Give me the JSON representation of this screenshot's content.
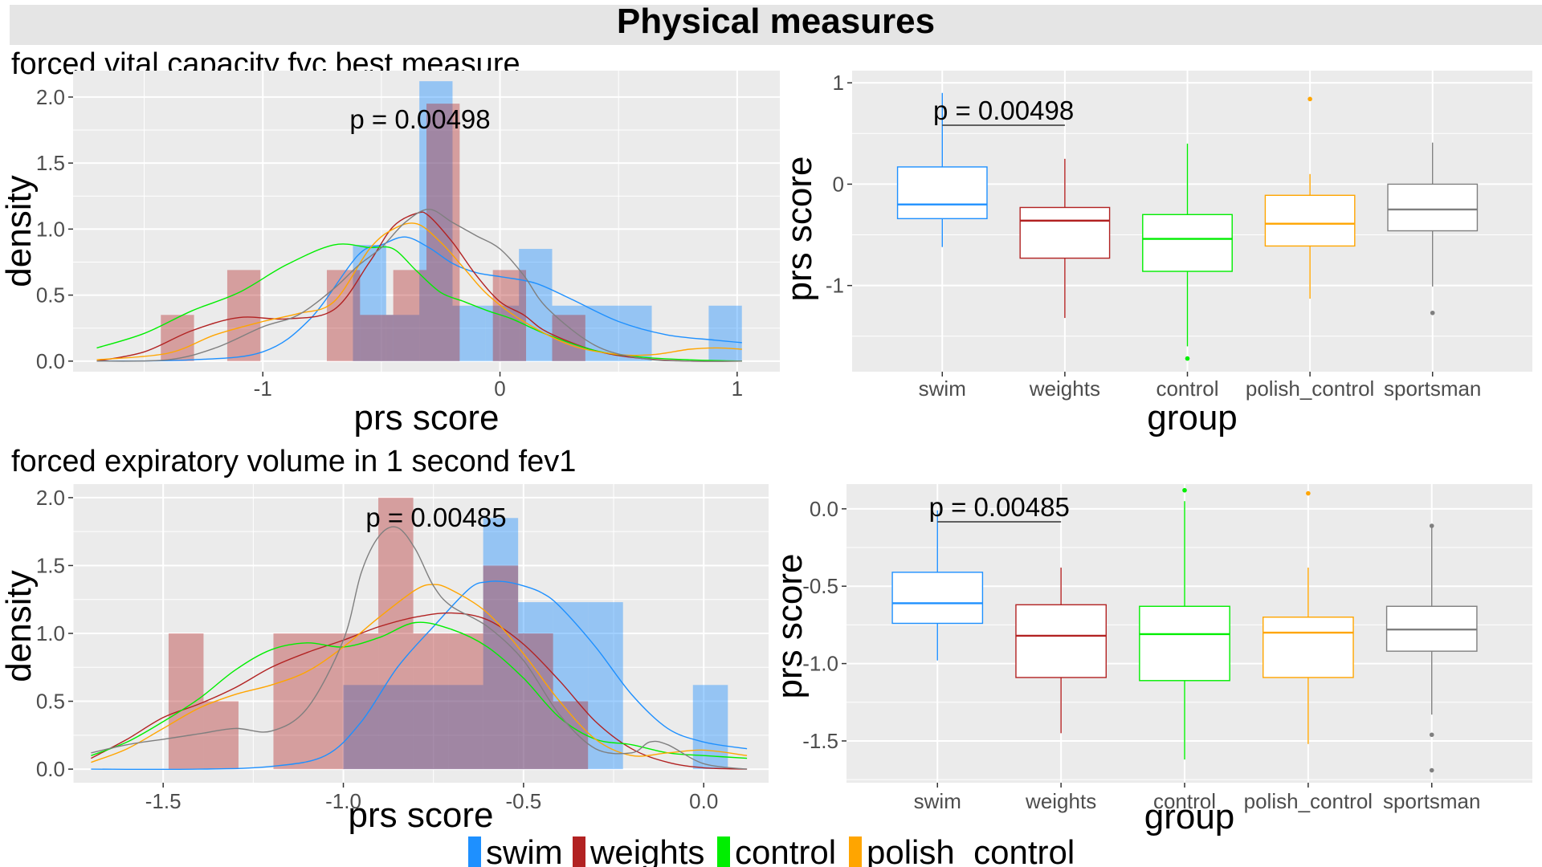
{
  "figure": {
    "title": "Physical measures",
    "legend": {
      "placement": "bottom",
      "entries": [
        {
          "label": "swim",
          "color": "#1e90ff"
        },
        {
          "label": "weights",
          "color": "#b22222"
        },
        {
          "label": "control",
          "color": "#00ee00"
        },
        {
          "label": "polish_control",
          "color": "#ffa500"
        }
      ]
    }
  },
  "colors": {
    "panel_bg": "#ebebeb",
    "grid": "#ffffff",
    "swim": "#1e90ff",
    "weights": "#b22222",
    "control": "#00ee00",
    "polish_control": "#ffa500",
    "sportsman": "#7f7f7f",
    "overlap": "#8b6a9a"
  },
  "chart_data": [
    {
      "type": "histogram",
      "title": "forced vital capacity fvc best measure",
      "xlabel": "prs score",
      "ylabel": "density",
      "annotation": "p = 0.00498",
      "xlim": [
        -1.8,
        1.18
      ],
      "ylim": [
        -0.08,
        2.2
      ],
      "xticks": [
        -1,
        0,
        1
      ],
      "xtick_labels": [
        "-1",
        "0",
        "1"
      ],
      "yticks": [
        0.0,
        0.5,
        1.0,
        1.5,
        2.0
      ],
      "ytick_labels": [
        "0.0",
        "0.5",
        "1.0",
        "1.5",
        "2.0"
      ],
      "grid": true,
      "histograms": [
        {
          "name": "swim",
          "color": "#1e90ff",
          "opacity": 0.42,
          "bins": [
            [
              -0.62,
              -0.48,
              0.88
            ],
            [
              -0.48,
              -0.34,
              0.35
            ],
            [
              -0.34,
              -0.2,
              2.12
            ],
            [
              -0.2,
              -0.06,
              0.42
            ],
            [
              -0.06,
              0.08,
              0.42
            ],
            [
              0.08,
              0.22,
              0.85
            ],
            [
              0.22,
              0.36,
              0.42
            ],
            [
              0.36,
              0.5,
              0.42
            ],
            [
              0.5,
              0.64,
              0.42
            ],
            [
              0.88,
              1.02,
              0.42
            ]
          ]
        },
        {
          "name": "weights",
          "color": "#b22222",
          "opacity": 0.38,
          "bins": [
            [
              -1.43,
              -1.29,
              0.35
            ],
            [
              -1.15,
              -1.01,
              0.69
            ],
            [
              -0.73,
              -0.59,
              0.69
            ],
            [
              -0.59,
              -0.45,
              0.35
            ],
            [
              -0.45,
              -0.31,
              0.69
            ],
            [
              -0.31,
              -0.17,
              1.95
            ],
            [
              -0.03,
              0.11,
              0.69
            ],
            [
              0.22,
              0.36,
              0.35
            ]
          ]
        }
      ],
      "densities": [
        {
          "name": "swim",
          "color": "#1e90ff",
          "x": [
            -1.7,
            -1.3,
            -1.0,
            -0.8,
            -0.6,
            -0.5,
            -0.4,
            -0.3,
            -0.2,
            -0.1,
            0.0,
            0.15,
            0.3,
            0.5,
            0.7,
            0.9,
            1.02
          ],
          "y": [
            0.0,
            0.01,
            0.07,
            0.32,
            0.8,
            0.88,
            0.94,
            0.86,
            0.74,
            0.67,
            0.64,
            0.59,
            0.47,
            0.3,
            0.2,
            0.16,
            0.14
          ]
        },
        {
          "name": "weights",
          "color": "#b22222",
          "x": [
            -1.7,
            -1.5,
            -1.3,
            -1.1,
            -0.9,
            -0.7,
            -0.55,
            -0.45,
            -0.35,
            -0.3,
            -0.2,
            -0.1,
            0.0,
            0.1,
            0.2,
            0.4,
            0.6,
            0.8,
            1.02
          ],
          "y": [
            0.0,
            0.07,
            0.23,
            0.33,
            0.32,
            0.39,
            0.75,
            1.02,
            1.12,
            1.1,
            0.9,
            0.65,
            0.45,
            0.35,
            0.22,
            0.08,
            0.02,
            0.0,
            0.0
          ]
        },
        {
          "name": "control",
          "color": "#00ee00",
          "x": [
            -1.7,
            -1.5,
            -1.3,
            -1.1,
            -0.9,
            -0.7,
            -0.55,
            -0.45,
            -0.35,
            -0.25,
            -0.15,
            -0.05,
            0.05,
            0.2,
            0.4,
            0.6,
            0.8,
            1.02
          ],
          "y": [
            0.1,
            0.21,
            0.38,
            0.52,
            0.73,
            0.88,
            0.86,
            0.85,
            0.68,
            0.52,
            0.45,
            0.38,
            0.32,
            0.2,
            0.08,
            0.03,
            0.01,
            0.0
          ]
        },
        {
          "name": "polish_control",
          "color": "#ffa500",
          "x": [
            -1.7,
            -1.4,
            -1.2,
            -1.0,
            -0.85,
            -0.7,
            -0.55,
            -0.45,
            -0.35,
            -0.25,
            -0.15,
            -0.05,
            0.1,
            0.3,
            0.5,
            0.65,
            0.8,
            0.92,
            1.02
          ],
          "y": [
            0.01,
            0.06,
            0.2,
            0.3,
            0.36,
            0.45,
            0.85,
            1.0,
            1.04,
            0.9,
            0.7,
            0.5,
            0.3,
            0.12,
            0.05,
            0.05,
            0.09,
            0.1,
            0.09
          ]
        },
        {
          "name": "sportsman",
          "color": "#7f7f7f",
          "x": [
            -1.7,
            -1.4,
            -1.2,
            -1.0,
            -0.85,
            -0.7,
            -0.6,
            -0.5,
            -0.4,
            -0.3,
            -0.2,
            -0.1,
            0.0,
            0.1,
            0.2,
            0.4,
            0.6,
            0.8,
            1.02
          ],
          "y": [
            0.0,
            0.01,
            0.1,
            0.26,
            0.35,
            0.55,
            0.72,
            0.86,
            1.05,
            1.15,
            1.05,
            0.95,
            0.85,
            0.65,
            0.4,
            0.12,
            0.02,
            0.0,
            0.0
          ]
        }
      ]
    },
    {
      "type": "box",
      "title": "",
      "xlabel": "group",
      "ylabel": "prs score",
      "annotation": "p = 0.00498",
      "categories": [
        "swim",
        "weights",
        "control",
        "polish_control",
        "sportsman"
      ],
      "ylim": [
        -1.85,
        1.12
      ],
      "yticks": [
        1,
        0,
        -1
      ],
      "ytick_labels": [
        "1",
        "0",
        "-1"
      ],
      "grid": true,
      "comparison": [
        "swim",
        "weights"
      ],
      "boxes": [
        {
          "name": "swim",
          "color": "#1e90ff",
          "whisker_low": -0.62,
          "q1": -0.34,
          "median": -0.2,
          "q3": 0.17,
          "whisker_high": 0.9,
          "outliers": []
        },
        {
          "name": "weights",
          "color": "#b22222",
          "whisker_low": -1.32,
          "q1": -0.73,
          "median": -0.36,
          "q3": -0.23,
          "whisker_high": 0.25,
          "outliers": []
        },
        {
          "name": "control",
          "color": "#00ee00",
          "whisker_low": -1.6,
          "q1": -0.86,
          "median": -0.54,
          "q3": -0.3,
          "whisker_high": 0.4,
          "outliers": [
            -1.72
          ]
        },
        {
          "name": "polish_control",
          "color": "#ffa500",
          "whisker_low": -1.13,
          "q1": -0.61,
          "median": -0.39,
          "q3": -0.11,
          "whisker_high": 0.1,
          "outliers": [
            0.84
          ]
        },
        {
          "name": "sportsman",
          "color": "#7f7f7f",
          "whisker_low": -1.01,
          "q1": -0.46,
          "median": -0.25,
          "q3": 0.0,
          "whisker_high": 0.41,
          "outliers": [
            -1.27
          ]
        }
      ]
    },
    {
      "type": "histogram",
      "title": "forced expiratory volume in 1 second fev1",
      "xlabel": "prs score",
      "ylabel": "density",
      "annotation": "p = 0.00485",
      "xlim": [
        -1.75,
        0.18
      ],
      "ylim": [
        -0.1,
        2.1
      ],
      "xticks": [
        -1.5,
        -1.0,
        -0.5,
        0.0
      ],
      "xtick_labels": [
        "-1.5",
        "-1.0",
        "-0.5",
        "0.0"
      ],
      "yticks": [
        0.0,
        0.5,
        1.0,
        1.5,
        2.0
      ],
      "ytick_labels": [
        "0.0",
        "0.5",
        "1.0",
        "1.5",
        "2.0"
      ],
      "grid": true,
      "histograms": [
        {
          "name": "swim",
          "color": "#1e90ff",
          "opacity": 0.42,
          "bins": [
            [
              -1.0,
              -0.903,
              0.62
            ],
            [
              -0.903,
              -0.806,
              0.62
            ],
            [
              -0.806,
              -0.709,
              0.62
            ],
            [
              -0.709,
              -0.612,
              0.62
            ],
            [
              -0.612,
              -0.515,
              1.85
            ],
            [
              -0.515,
              -0.418,
              1.23
            ],
            [
              -0.418,
              -0.321,
              1.23
            ],
            [
              -0.321,
              -0.224,
              1.23
            ],
            [
              -0.03,
              0.067,
              0.62
            ]
          ]
        },
        {
          "name": "weights",
          "color": "#b22222",
          "opacity": 0.38,
          "bins": [
            [
              -1.485,
              -1.388,
              1.0
            ],
            [
              -1.388,
              -1.291,
              0.5
            ],
            [
              -1.194,
              -1.097,
              1.0
            ],
            [
              -1.097,
              -1.0,
              1.0
            ],
            [
              -1.0,
              -0.903,
              1.0
            ],
            [
              -0.903,
              -0.806,
              2.0
            ],
            [
              -0.806,
              -0.709,
              1.0
            ],
            [
              -0.709,
              -0.612,
              1.0
            ],
            [
              -0.612,
              -0.515,
              1.5
            ],
            [
              -0.515,
              -0.418,
              1.0
            ],
            [
              -0.418,
              -0.321,
              0.5
            ]
          ]
        }
      ],
      "densities": [
        {
          "name": "swim",
          "color": "#1e90ff",
          "x": [
            -1.7,
            -1.4,
            -1.2,
            -1.05,
            -0.95,
            -0.85,
            -0.75,
            -0.65,
            -0.6,
            -0.55,
            -0.5,
            -0.45,
            -0.4,
            -0.3,
            -0.2,
            -0.1,
            0.0,
            0.12
          ],
          "y": [
            0.0,
            0.0,
            0.02,
            0.1,
            0.35,
            0.75,
            1.05,
            1.33,
            1.38,
            1.38,
            1.35,
            1.3,
            1.2,
            0.9,
            0.55,
            0.3,
            0.2,
            0.15
          ]
        },
        {
          "name": "weights",
          "color": "#b22222",
          "x": [
            -1.7,
            -1.6,
            -1.5,
            -1.4,
            -1.3,
            -1.2,
            -1.1,
            -1.0,
            -0.9,
            -0.8,
            -0.7,
            -0.6,
            -0.5,
            -0.4,
            -0.3,
            -0.2,
            -0.1,
            0.0,
            0.12
          ],
          "y": [
            0.08,
            0.22,
            0.38,
            0.48,
            0.6,
            0.75,
            0.86,
            0.95,
            1.05,
            1.12,
            1.15,
            1.1,
            0.92,
            0.65,
            0.35,
            0.15,
            0.05,
            0.01,
            0.0
          ]
        },
        {
          "name": "control",
          "color": "#00ee00",
          "x": [
            -1.7,
            -1.6,
            -1.5,
            -1.4,
            -1.3,
            -1.2,
            -1.1,
            -1.0,
            -0.9,
            -0.8,
            -0.7,
            -0.6,
            -0.5,
            -0.4,
            -0.3,
            -0.2,
            -0.1,
            0.0,
            0.12
          ],
          "y": [
            0.1,
            0.2,
            0.35,
            0.52,
            0.73,
            0.88,
            0.93,
            0.9,
            0.97,
            1.08,
            1.03,
            0.9,
            0.67,
            0.38,
            0.22,
            0.18,
            0.12,
            0.1,
            0.08
          ]
        },
        {
          "name": "polish_control",
          "color": "#ffa500",
          "x": [
            -1.7,
            -1.6,
            -1.5,
            -1.4,
            -1.3,
            -1.2,
            -1.1,
            -1.0,
            -0.9,
            -0.8,
            -0.75,
            -0.7,
            -0.6,
            -0.5,
            -0.4,
            -0.3,
            -0.2,
            -0.1,
            0.0,
            0.12
          ],
          "y": [
            0.05,
            0.15,
            0.3,
            0.45,
            0.55,
            0.62,
            0.72,
            0.9,
            1.12,
            1.32,
            1.36,
            1.32,
            1.15,
            0.85,
            0.5,
            0.22,
            0.1,
            0.12,
            0.14,
            0.1
          ]
        },
        {
          "name": "sportsman",
          "color": "#7f7f7f",
          "x": [
            -1.7,
            -1.6,
            -1.5,
            -1.4,
            -1.3,
            -1.2,
            -1.1,
            -1.0,
            -0.95,
            -0.9,
            -0.85,
            -0.8,
            -0.75,
            -0.7,
            -0.6,
            -0.5,
            -0.4,
            -0.3,
            -0.2,
            -0.15,
            -0.1,
            0.0,
            0.12
          ],
          "y": [
            0.12,
            0.18,
            0.22,
            0.26,
            0.3,
            0.28,
            0.45,
            0.95,
            1.45,
            1.72,
            1.78,
            1.62,
            1.35,
            1.2,
            1.05,
            0.8,
            0.4,
            0.15,
            0.12,
            0.2,
            0.18,
            0.04,
            0.0
          ]
        }
      ]
    },
    {
      "type": "box",
      "title": "",
      "xlabel": "group",
      "ylabel": "prs score",
      "annotation": "p = 0.00485",
      "categories": [
        "swim",
        "weights",
        "control",
        "polish_control",
        "sportsman"
      ],
      "ylim": [
        -1.77,
        0.16
      ],
      "yticks": [
        0.0,
        -0.5,
        -1.0,
        -1.5
      ],
      "ytick_labels": [
        "0.0",
        "-0.5",
        "-1.0",
        "-1.5"
      ],
      "grid": true,
      "comparison": [
        "swim",
        "weights"
      ],
      "boxes": [
        {
          "name": "swim",
          "color": "#1e90ff",
          "whisker_low": -0.98,
          "q1": -0.74,
          "median": -0.61,
          "q3": -0.41,
          "whisker_high": -0.01,
          "outliers": []
        },
        {
          "name": "weights",
          "color": "#b22222",
          "whisker_low": -1.45,
          "q1": -1.09,
          "median": -0.82,
          "q3": -0.62,
          "whisker_high": -0.38,
          "outliers": []
        },
        {
          "name": "control",
          "color": "#00ee00",
          "whisker_low": -1.62,
          "q1": -1.11,
          "median": -0.81,
          "q3": -0.63,
          "whisker_high": 0.05,
          "outliers": [
            0.12
          ]
        },
        {
          "name": "polish_control",
          "color": "#ffa500",
          "whisker_low": -1.52,
          "q1": -1.09,
          "median": -0.8,
          "q3": -0.7,
          "whisker_high": -0.38,
          "outliers": [
            0.1
          ]
        },
        {
          "name": "sportsman",
          "color": "#7f7f7f",
          "whisker_low": -1.33,
          "q1": -0.92,
          "median": -0.78,
          "q3": -0.63,
          "whisker_high": -0.12,
          "outliers": [
            -0.11,
            -1.46,
            -1.69
          ]
        }
      ]
    }
  ]
}
